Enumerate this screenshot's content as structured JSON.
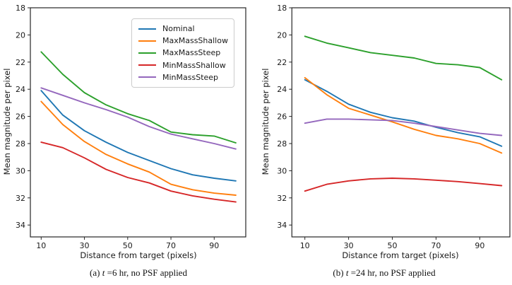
{
  "figure": {
    "background": "#ffffff",
    "text_color": "#1a1a1a",
    "spine_color": "#262626"
  },
  "axis": {
    "x_label": "Distance from target (pixels)",
    "y_label": "Mean magnitude per pixel"
  },
  "captions": {
    "a": {
      "prefix": "(a) ",
      "t": "t",
      "suffix": " =6 hr, no PSF applied"
    },
    "b": {
      "prefix": "(b) ",
      "t": "t",
      "suffix": " =24 hr, no PSF applied"
    }
  },
  "legend": {
    "entries": [
      "Nominal",
      "MaxMassShallow",
      "MaxMassSteep",
      "MinMassShallow",
      "MinMassSteep"
    ],
    "colors": [
      "#1f77b4",
      "#ff7f0e",
      "#2ca02c",
      "#d62728",
      "#9467bd"
    ]
  },
  "chart_data": [
    {
      "type": "line",
      "panel": "a",
      "caption": "(a) t =6 hr, no PSF applied",
      "xlabel": "Distance from target (pixels)",
      "ylabel": "Mean magnitude per pixel",
      "x": [
        10,
        20,
        30,
        40,
        50,
        60,
        70,
        80,
        90,
        100
      ],
      "x_ticks": [
        10,
        30,
        50,
        70,
        90
      ],
      "y_ticks": [
        18,
        20,
        22,
        24,
        26,
        28,
        30,
        32,
        34
      ],
      "xlim": [
        5,
        104.6
      ],
      "ylim": [
        18,
        34.9
      ],
      "y_inverted": true,
      "grid": false,
      "legend_visible": true,
      "legend_position": "upper right",
      "series": [
        {
          "name": "Nominal",
          "color": "#1f77b4",
          "values": [
            24.1,
            25.9,
            27.05,
            27.9,
            28.65,
            29.25,
            29.85,
            30.3,
            30.55,
            30.75
          ]
        },
        {
          "name": "MaxMassShallow",
          "color": "#ff7f0e",
          "values": [
            24.9,
            26.6,
            27.85,
            28.8,
            29.5,
            30.1,
            31.0,
            31.4,
            31.65,
            31.8
          ]
        },
        {
          "name": "MaxMassSteep",
          "color": "#2ca02c",
          "values": [
            21.25,
            22.9,
            24.25,
            25.15,
            25.8,
            26.3,
            27.15,
            27.35,
            27.45,
            27.95
          ]
        },
        {
          "name": "MinMassShallow",
          "color": "#d62728",
          "values": [
            27.9,
            28.3,
            29.05,
            29.9,
            30.5,
            30.9,
            31.5,
            31.85,
            32.1,
            32.3
          ]
        },
        {
          "name": "MinMassSteep",
          "color": "#9467bd",
          "values": [
            23.9,
            24.45,
            25.0,
            25.5,
            26.05,
            26.75,
            27.3,
            27.65,
            28.0,
            28.4
          ]
        }
      ]
    },
    {
      "type": "line",
      "panel": "b",
      "caption": "(b) t =24 hr, no PSF applied",
      "xlabel": "Distance from target (pixels)",
      "ylabel": "Mean magnitude per pixel",
      "x": [
        10,
        20,
        30,
        40,
        50,
        60,
        70,
        80,
        90,
        100
      ],
      "x_ticks": [
        10,
        30,
        50,
        70,
        90
      ],
      "y_ticks": [
        18,
        20,
        22,
        24,
        26,
        28,
        30,
        32,
        34
      ],
      "xlim": [
        5,
        104.6
      ],
      "ylim": [
        18,
        34.9
      ],
      "y_inverted": true,
      "grid": false,
      "legend_visible": false,
      "series": [
        {
          "name": "Nominal",
          "color": "#1f77b4",
          "values": [
            23.3,
            24.15,
            25.1,
            25.7,
            26.1,
            26.35,
            26.8,
            27.2,
            27.5,
            28.2
          ]
        },
        {
          "name": "MaxMassShallow",
          "color": "#ff7f0e",
          "values": [
            23.15,
            24.4,
            25.4,
            25.9,
            26.4,
            26.95,
            27.4,
            27.65,
            28.0,
            28.7
          ]
        },
        {
          "name": "MaxMassSteep",
          "color": "#2ca02c",
          "values": [
            20.1,
            20.6,
            20.95,
            21.3,
            21.5,
            21.7,
            22.1,
            22.2,
            22.4,
            23.3
          ]
        },
        {
          "name": "MinMassShallow",
          "color": "#d62728",
          "values": [
            31.5,
            31.0,
            30.75,
            30.6,
            30.55,
            30.6,
            30.7,
            30.8,
            30.95,
            31.1
          ]
        },
        {
          "name": "MinMassSteep",
          "color": "#9467bd",
          "values": [
            26.5,
            26.2,
            26.2,
            26.25,
            26.3,
            26.5,
            26.75,
            27.0,
            27.25,
            27.4
          ]
        }
      ]
    }
  ]
}
